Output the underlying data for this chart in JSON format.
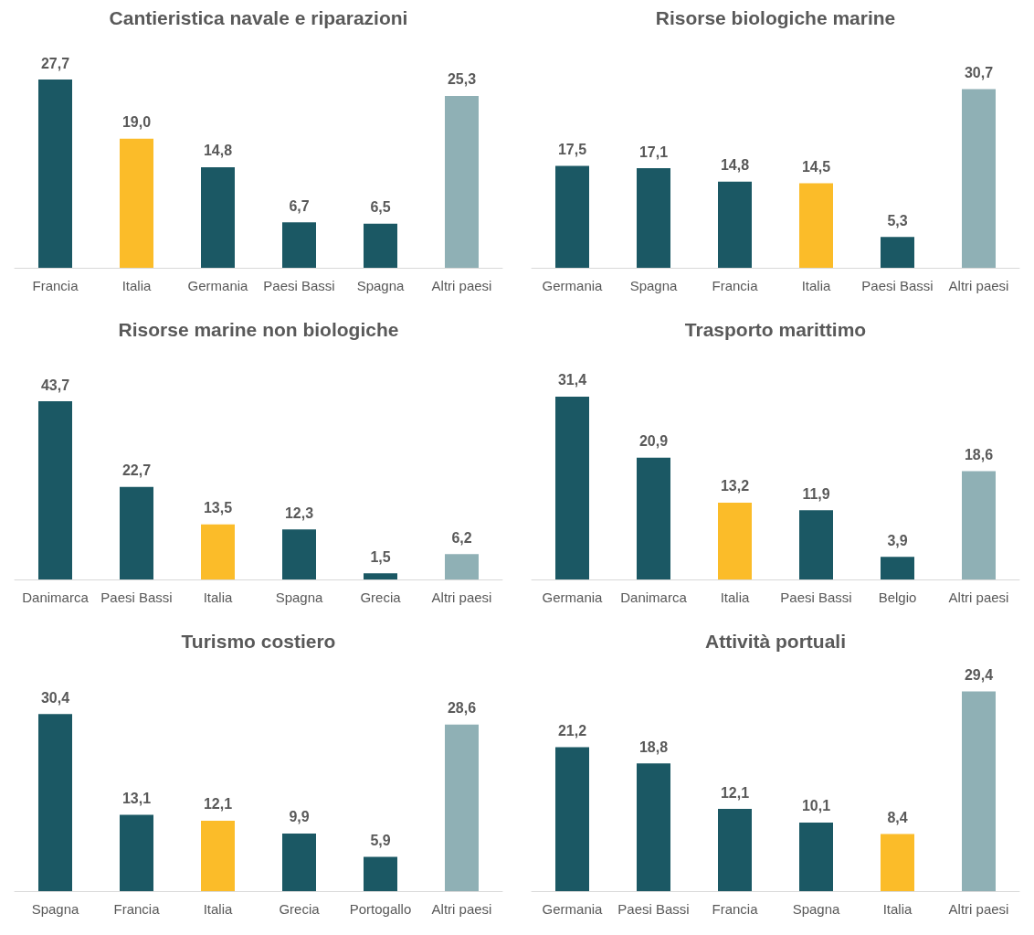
{
  "chart_data": [
    {
      "type": "bar",
      "title": "Cantieristica navale e riparazioni",
      "categories": [
        "Francia",
        "Italia",
        "Germania",
        "Paesi Bassi",
        "Spagna",
        "Altri paesi"
      ],
      "values": [
        27.7,
        19.0,
        14.8,
        6.7,
        6.5,
        25.3
      ],
      "value_labels": [
        "27,7",
        "19,0",
        "14,8",
        "6,7",
        "6,5",
        "25,3"
      ],
      "colors": [
        "#1b5864",
        "#fbbc29",
        "#1b5864",
        "#1b5864",
        "#1b5864",
        "#8fb0b5"
      ]
    },
    {
      "type": "bar",
      "title": "Risorse biologiche marine",
      "categories": [
        "Germania",
        "Spagna",
        "Francia",
        "Italia",
        "Paesi Bassi",
        "Altri paesi"
      ],
      "values": [
        17.5,
        17.1,
        14.8,
        14.5,
        5.3,
        30.7
      ],
      "value_labels": [
        "17,5",
        "17,1",
        "14,8",
        "14,5",
        "5,3",
        "30,7"
      ],
      "colors": [
        "#1b5864",
        "#1b5864",
        "#1b5864",
        "#fbbc29",
        "#1b5864",
        "#8fb0b5"
      ]
    },
    {
      "type": "bar",
      "title": "Risorse marine non biologiche",
      "categories": [
        "Danimarca",
        "Paesi Bassi",
        "Italia",
        "Spagna",
        "Grecia",
        "Altri paesi"
      ],
      "values": [
        43.7,
        22.7,
        13.5,
        12.3,
        1.5,
        6.2
      ],
      "value_labels": [
        "43,7",
        "22,7",
        "13,5",
        "12,3",
        "1,5",
        "6,2"
      ],
      "colors": [
        "#1b5864",
        "#1b5864",
        "#fbbc29",
        "#1b5864",
        "#1b5864",
        "#8fb0b5"
      ]
    },
    {
      "type": "bar",
      "title": "Trasporto marittimo",
      "categories": [
        "Germania",
        "Danimarca",
        "Italia",
        "Paesi Bassi",
        "Belgio",
        "Altri paesi"
      ],
      "values": [
        31.4,
        20.9,
        13.2,
        11.9,
        3.9,
        18.6
      ],
      "value_labels": [
        "31,4",
        "20,9",
        "13,2",
        "11,9",
        "3,9",
        "18,6"
      ],
      "colors": [
        "#1b5864",
        "#1b5864",
        "#fbbc29",
        "#1b5864",
        "#1b5864",
        "#8fb0b5"
      ]
    },
    {
      "type": "bar",
      "title": "Turismo costiero",
      "categories": [
        "Spagna",
        "Francia",
        "Italia",
        "Grecia",
        "Portogallo",
        "Altri paesi"
      ],
      "values": [
        30.4,
        13.1,
        12.1,
        9.9,
        5.9,
        28.6
      ],
      "value_labels": [
        "30,4",
        "13,1",
        "12,1",
        "9,9",
        "5,9",
        "28,6"
      ],
      "colors": [
        "#1b5864",
        "#1b5864",
        "#fbbc29",
        "#1b5864",
        "#1b5864",
        "#8fb0b5"
      ]
    },
    {
      "type": "bar",
      "title": "Attività portuali",
      "categories": [
        "Germania",
        "Paesi Bassi",
        "Francia",
        "Spagna",
        "Italia",
        "Altri paesi"
      ],
      "values": [
        21.2,
        18.8,
        12.1,
        10.1,
        8.4,
        29.4
      ],
      "value_labels": [
        "21,2",
        "18,8",
        "12,1",
        "10,1",
        "8,4",
        "29,4"
      ],
      "colors": [
        "#1b5864",
        "#1b5864",
        "#1b5864",
        "#1b5864",
        "#fbbc29",
        "#8fb0b5"
      ]
    }
  ]
}
